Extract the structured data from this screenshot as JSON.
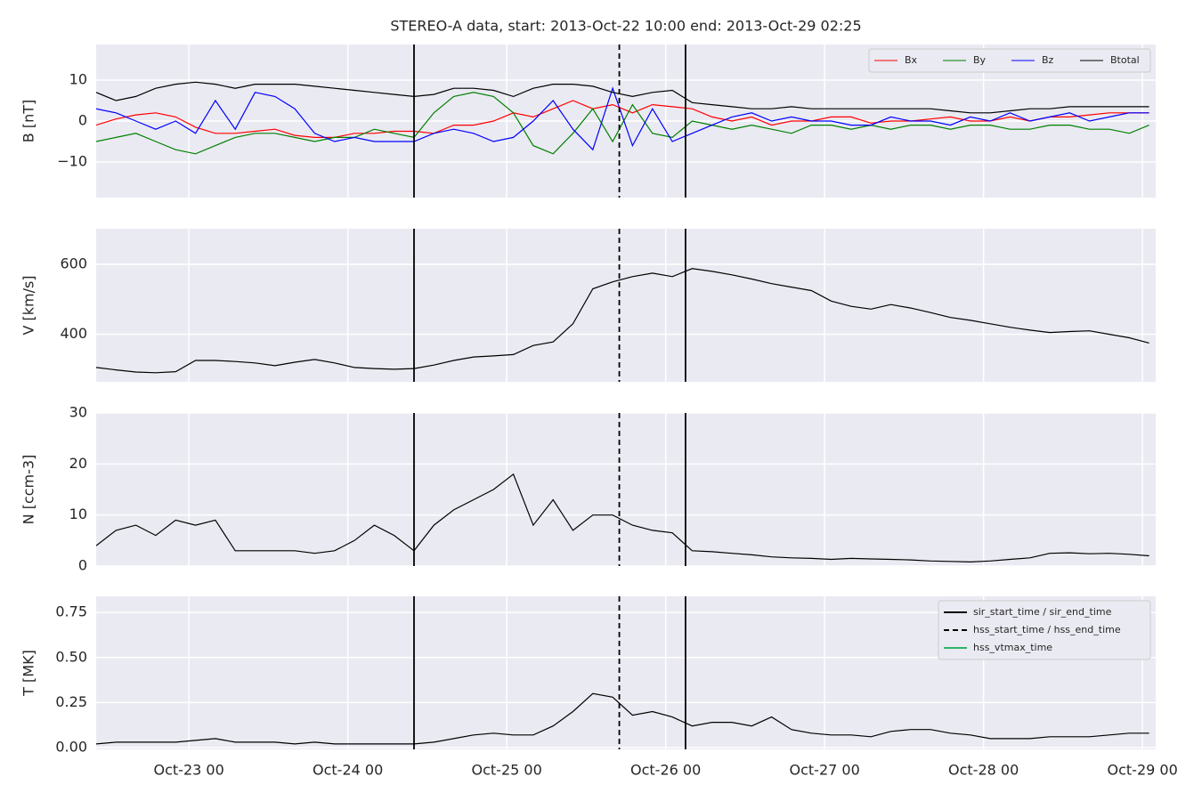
{
  "chart_data": [
    {
      "type": "line",
      "title": "STEREO-A data, start: 2013-Oct-22 10:00  end: 2013-Oct-29 02:25",
      "ylabel": "B [nT]",
      "ylim": [
        -18.7,
        18.7
      ],
      "yticks": [
        10,
        0,
        {
          "value": -10,
          "label": "−10"
        }
      ],
      "grid": true,
      "legend": "upper right",
      "legend_ncol": 4,
      "series": [
        {
          "name": "Bx",
          "color": "#ff0000",
          "values": [
            -1,
            0.5,
            1.5,
            2,
            1,
            -1.5,
            -3,
            -3,
            -2.5,
            -2,
            -3.5,
            -4,
            -4,
            -3,
            -3,
            -2.5,
            -2.5,
            -3,
            -1,
            -1,
            0,
            2,
            1,
            3,
            5,
            3,
            4,
            2,
            4,
            3.5,
            3,
            1,
            0,
            1,
            -1,
            0,
            0,
            1,
            1,
            -0.5,
            0,
            0,
            0.5,
            1,
            0,
            0,
            1,
            0,
            1,
            1,
            1.5,
            2,
            2,
            2
          ]
        },
        {
          "name": "By",
          "color": "#008000",
          "values": [
            -5,
            -4,
            -3,
            -5,
            -7,
            -8,
            -6,
            -4,
            -3,
            -3,
            -4,
            -5,
            -4,
            -4,
            -2,
            -3,
            -4,
            2,
            6,
            7,
            6,
            2,
            -6,
            -8,
            -3,
            3,
            -5,
            4,
            -3,
            -4,
            0,
            -1,
            -2,
            -1,
            -2,
            -3,
            -1,
            -1,
            -2,
            -1,
            -2,
            -1,
            -1,
            -2,
            -1,
            -1,
            -2,
            -2,
            -1,
            -1,
            -2,
            -2,
            -3,
            -1
          ]
        },
        {
          "name": "Bz",
          "color": "#0000ff",
          "values": [
            3,
            2,
            0,
            -2,
            0,
            -3,
            5,
            -2,
            7,
            6,
            3,
            -3,
            -5,
            -4,
            -5,
            -5,
            -5,
            -3,
            -2,
            -3,
            -5,
            -4,
            0,
            5,
            -2,
            -7,
            8,
            -6,
            3,
            -5,
            -3,
            -1,
            1,
            2,
            0,
            1,
            0,
            0,
            -1,
            -1,
            1,
            0,
            0,
            -1,
            1,
            0,
            2,
            0,
            1,
            2,
            0,
            1,
            2,
            2
          ]
        },
        {
          "name": "Btotal",
          "color": "#000000",
          "values": [
            7,
            5,
            6,
            8,
            9,
            9.5,
            9,
            8,
            9,
            9,
            9,
            8.5,
            8,
            7.5,
            7,
            6.5,
            6,
            6.5,
            8,
            8,
            7.5,
            6,
            8,
            9,
            9,
            8.5,
            7,
            6,
            7,
            7.5,
            4.5,
            4,
            3.5,
            3,
            3,
            3.5,
            3,
            3,
            3,
            3,
            3,
            3,
            3,
            2.5,
            2,
            2,
            2.5,
            3,
            3,
            3.5,
            3.5,
            3.5,
            3.5,
            3.5
          ]
        }
      ]
    },
    {
      "type": "line",
      "ylabel": "V [km/s]",
      "ylim": [
        264,
        702
      ],
      "yticks": [
        400,
        600
      ],
      "grid": true,
      "series": [
        {
          "color": "#000000",
          "values": [
            305,
            298,
            292,
            290,
            293,
            325,
            325,
            322,
            318,
            310,
            320,
            328,
            318,
            305,
            302,
            300,
            302,
            312,
            325,
            335,
            338,
            342,
            368,
            378,
            430,
            530,
            550,
            565,
            575,
            565,
            588,
            580,
            570,
            558,
            545,
            535,
            525,
            495,
            480,
            472,
            485,
            475,
            462,
            448,
            440,
            430,
            420,
            412,
            405,
            408,
            410,
            400,
            390,
            375
          ]
        }
      ]
    },
    {
      "type": "line",
      "ylabel": "N [ccm-3]",
      "ylim": [
        0,
        30
      ],
      "yticks": [
        0,
        10,
        20,
        30
      ],
      "grid": true,
      "series": [
        {
          "color": "#000000",
          "values": [
            4,
            7,
            8,
            6,
            9,
            8,
            9,
            3,
            3,
            3,
            3,
            2.5,
            3,
            5,
            8,
            6,
            3,
            8,
            11,
            13,
            15,
            18,
            8,
            13,
            7,
            10,
            10,
            8,
            7,
            6.5,
            3,
            2.8,
            2.5,
            2.2,
            1.8,
            1.6,
            1.5,
            1.3,
            1.5,
            1.4,
            1.3,
            1.2,
            1.0,
            0.9,
            0.8,
            1.0,
            1.3,
            1.6,
            2.5,
            2.6,
            2.4,
            2.5,
            2.3,
            2.0
          ]
        }
      ]
    },
    {
      "type": "line",
      "ylabel": "T [MK]",
      "ylim": [
        -0.01,
        0.84
      ],
      "yticks": [
        {
          "value": 0,
          "label": "0.00"
        },
        {
          "value": 0.25,
          "label": "0.25"
        },
        {
          "value": 0.5,
          "label": "0.50"
        },
        {
          "value": 0.75,
          "label": "0.75"
        }
      ],
      "grid": true,
      "legend": "upper right",
      "legend_ncol": 1,
      "xlim": [
        "Oct-22 10",
        "Oct-29 02"
      ],
      "xticks": [
        "Oct-23 00",
        "Oct-24 00",
        "Oct-25 00",
        "Oct-26 00",
        "Oct-27 00",
        "Oct-28 00",
        "Oct-29 00"
      ],
      "x": [
        "Oct-22 10",
        "Oct-22 13",
        "Oct-22 16",
        "Oct-22 19",
        "Oct-22 22",
        "Oct-23 01",
        "Oct-23 04",
        "Oct-23 07",
        "Oct-23 10",
        "Oct-23 13",
        "Oct-23 16",
        "Oct-23 19",
        "Oct-23 22",
        "Oct-24 01",
        "Oct-24 04",
        "Oct-24 07",
        "Oct-24 10",
        "Oct-24 13",
        "Oct-24 16",
        "Oct-24 19",
        "Oct-24 22",
        "Oct-25 01",
        "Oct-25 04",
        "Oct-25 07",
        "Oct-25 10",
        "Oct-25 13",
        "Oct-25 16",
        "Oct-25 19",
        "Oct-25 22",
        "Oct-26 01",
        "Oct-26 04",
        "Oct-26 07",
        "Oct-26 10",
        "Oct-26 13",
        "Oct-26 16",
        "Oct-26 19",
        "Oct-26 22",
        "Oct-27 01",
        "Oct-27 04",
        "Oct-27 07",
        "Oct-27 10",
        "Oct-27 13",
        "Oct-27 16",
        "Oct-27 19",
        "Oct-27 22",
        "Oct-28 01",
        "Oct-28 04",
        "Oct-28 07",
        "Oct-28 10",
        "Oct-28 13",
        "Oct-28 16",
        "Oct-28 19",
        "Oct-28 22",
        "Oct-29 01"
      ],
      "series": [
        {
          "color": "#000000",
          "values": [
            0.02,
            0.03,
            0.03,
            0.03,
            0.03,
            0.04,
            0.05,
            0.03,
            0.03,
            0.03,
            0.02,
            0.03,
            0.02,
            0.02,
            0.02,
            0.02,
            0.02,
            0.03,
            0.05,
            0.07,
            0.08,
            0.07,
            0.07,
            0.12,
            0.2,
            0.3,
            0.28,
            0.18,
            0.2,
            0.17,
            0.12,
            0.14,
            0.14,
            0.12,
            0.17,
            0.1,
            0.08,
            0.07,
            0.07,
            0.06,
            0.09,
            0.1,
            0.1,
            0.08,
            0.07,
            0.05,
            0.05,
            0.05,
            0.06,
            0.06,
            0.06,
            0.07,
            0.08,
            0.08
          ]
        }
      ],
      "events": [
        {
          "name": "sir_start_time / sir_end_time",
          "color": "#000000",
          "style": "solid",
          "x": [
            "Oct-24 10",
            "Oct-26 03"
          ]
        },
        {
          "name": "hss_start_time / hss_end_time",
          "color": "#000000",
          "style": "dashed",
          "x": [
            "Oct-25 17"
          ]
        },
        {
          "name": "hss_vtmax_time",
          "color": "#2db36a",
          "style": "solid"
        }
      ]
    }
  ]
}
